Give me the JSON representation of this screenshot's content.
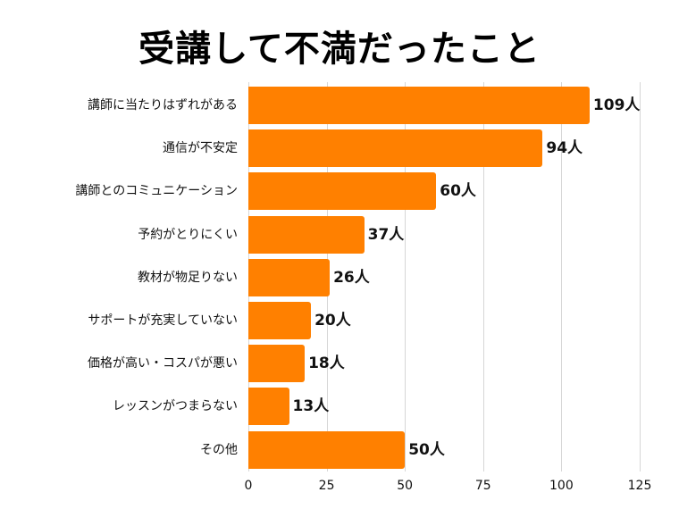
{
  "chart_data": {
    "type": "bar",
    "orientation": "horizontal",
    "title": "受講して不満だったこと",
    "xlabel": "",
    "ylabel": "",
    "categories": [
      "講師に当たりはずれがある",
      "通信が不安定",
      "講師とのコミュニケーション",
      "予約がとりにくい",
      "教材が物足りない",
      "サポートが充実していない",
      "価格が高い・コスパが悪い",
      "レッスンがつまらない",
      "その他"
    ],
    "values": [
      109,
      94,
      60,
      37,
      26,
      20,
      18,
      13,
      50
    ],
    "value_labels": [
      "109人",
      "94人",
      "60人",
      "37人",
      "26人",
      "20人",
      "18人",
      "13人",
      "50人"
    ],
    "unit": "人",
    "xlim": [
      0,
      125
    ],
    "xticks": [
      "0",
      "25",
      "50",
      "75",
      "100",
      "125"
    ],
    "grid": true,
    "legend": null,
    "bar_color": "#ff8000"
  }
}
